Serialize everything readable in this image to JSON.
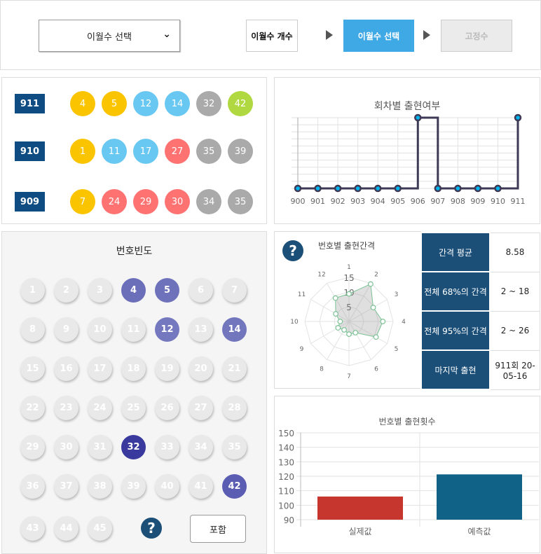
{
  "header": {
    "dropdown_label": "이월수 선택",
    "steps": [
      {
        "label": "이월수 개수",
        "state": "normal"
      },
      {
        "label": "이월수 선택",
        "state": "active"
      },
      {
        "label": "고정수",
        "state": "disabled"
      }
    ],
    "active_color": "#3fa9e5"
  },
  "draws": [
    {
      "round": "911",
      "numbers": [
        4,
        5,
        12,
        14,
        32,
        42
      ]
    },
    {
      "round": "910",
      "numbers": [
        1,
        11,
        17,
        27,
        35,
        39
      ]
    },
    {
      "round": "909",
      "numbers": [
        7,
        24,
        29,
        30,
        34,
        35
      ]
    }
  ],
  "ball_colors": {
    "1-10": "#fbc400",
    "11-20": "#69c8f2",
    "21-30": "#ff7272",
    "31-40": "#aaaaaa",
    "41-45": "#b0d840"
  },
  "frequency": {
    "title": "번호빈도",
    "include_label": "포함",
    "help_icon": "question-icon",
    "highlighted": {
      "4": "#6b6fb9",
      "5": "#6e72ba",
      "12": "#7478be",
      "14": "#7276bd",
      "32": "#3a3a9e",
      "42": "#5b5db3"
    }
  },
  "interval_stats": [
    {
      "label": "간격 평균",
      "value": "8.58"
    },
    {
      "label": "전체 68%의 간격",
      "value": "2 ~ 18"
    },
    {
      "label": "전체 95%의 간격",
      "value": "2 ~ 26"
    },
    {
      "label": "마지막 출현",
      "value": "911회 20-05-16"
    }
  ],
  "chart_data": [
    {
      "type": "line",
      "title": "회차별 출현여부",
      "step": true,
      "categories": [
        "900",
        "901",
        "902",
        "903",
        "904",
        "905",
        "906",
        "907",
        "908",
        "909",
        "910",
        "911"
      ],
      "values": [
        0,
        0,
        0,
        0,
        0,
        0,
        1,
        0,
        0,
        0,
        0,
        1
      ],
      "ylim": [
        0,
        1
      ],
      "grid": true,
      "line_color": "#3c3a55",
      "point_color": "#00b4f0"
    },
    {
      "type": "radar",
      "title": "번호별 출현간격",
      "categories": [
        "1",
        "2",
        "3",
        "4",
        "5",
        "6",
        "7",
        "8",
        "9",
        "10",
        "11",
        "12"
      ],
      "values": [
        9.4,
        14.7,
        9.5,
        11.5,
        10.6,
        4.4,
        4.3,
        3.3,
        4.3,
        3.0,
        5.2,
        9.2
      ],
      "ticks": [
        "5",
        "10",
        "15"
      ],
      "range": [
        0,
        15
      ],
      "line_color": "#7cc295"
    },
    {
      "type": "bar",
      "title": "번호별 출현횟수",
      "categories": [
        "실제값",
        "예측값"
      ],
      "values": [
        106,
        121.3
      ],
      "colors": [
        "#c7352f",
        "#106287"
      ],
      "ylim": [
        90,
        150
      ],
      "yticks": [
        "90",
        "100",
        "110",
        "120",
        "130",
        "140",
        "150"
      ],
      "grid": true
    }
  ]
}
